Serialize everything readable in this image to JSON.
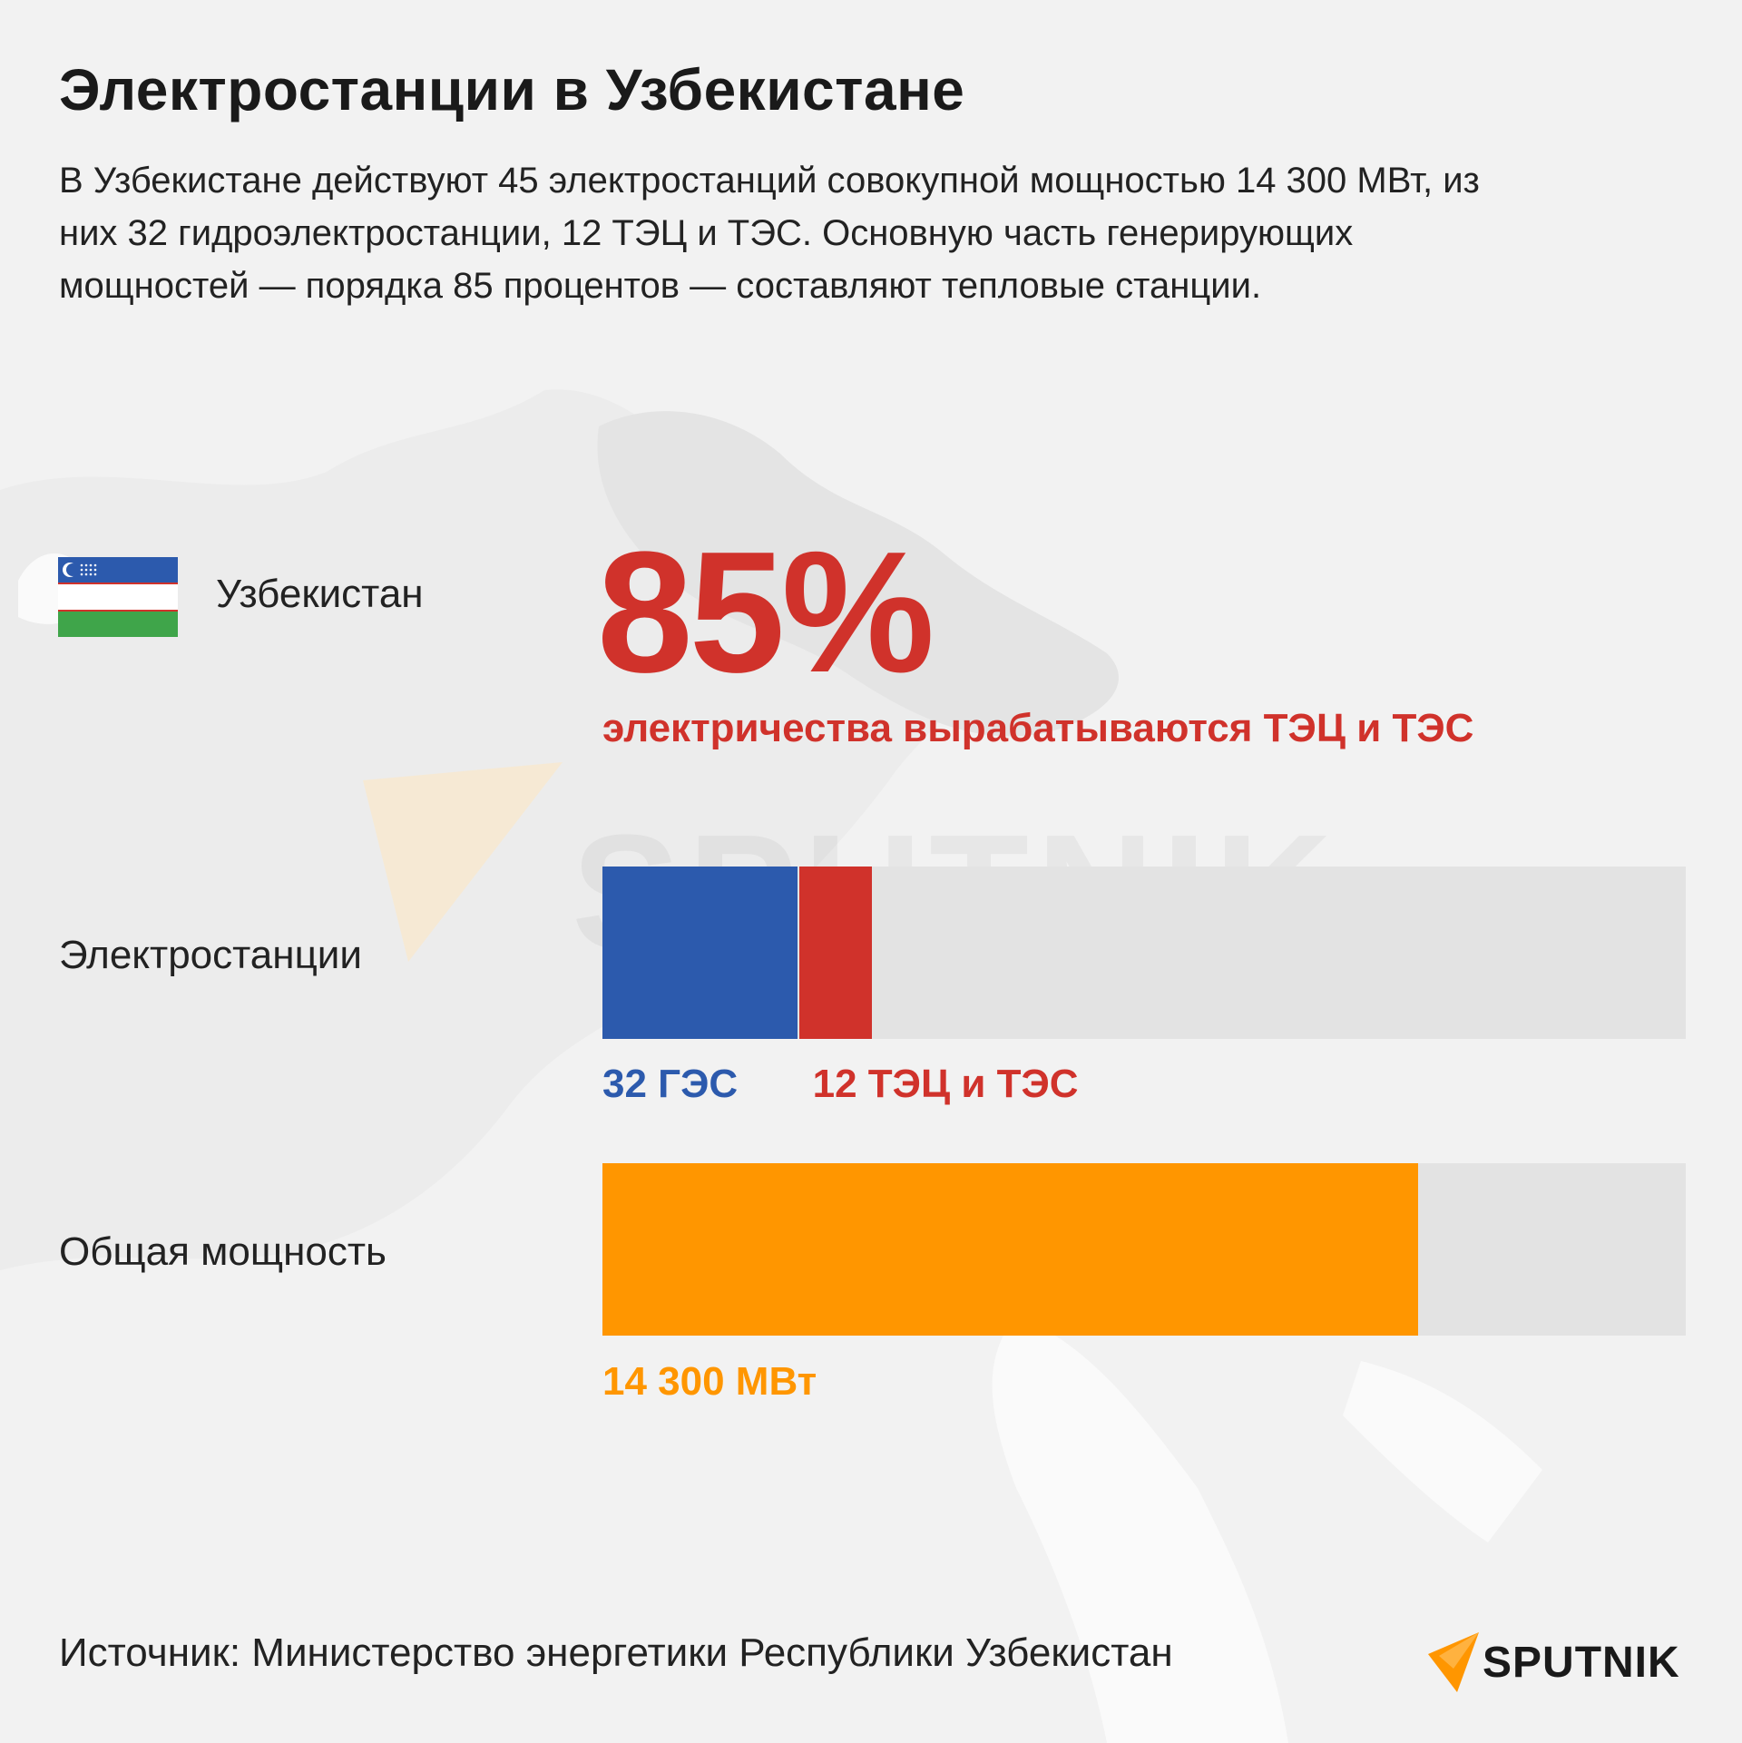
{
  "title": "Электростанции в Узбекистане",
  "lead": "В Узбекистане действуют 45 электростанций совокупной мощностью 14 300 МВт, из них 32 гидроэлектростанции, 12 ТЭЦ и ТЭС. Основную часть генерирующих мощностей — порядка 85 процентов — составляют тепловые станции.",
  "country": "Узбекистан",
  "highlight": {
    "value": "85%",
    "caption": "электричества вырабатываются ТЭЦ и ТЭС"
  },
  "source": "Источник: Министерство энергетики Республики Узбекистан",
  "brand": "SPUTNIK",
  "watermark": "SPUTNIK",
  "colors": {
    "hydro": "#2c5aad",
    "thermal": "#d0322b",
    "capacity": "#ff9600",
    "track": "#e3e3e3"
  },
  "chart_data": [
    {
      "type": "bar",
      "orientation": "horizontal",
      "stacked": true,
      "category": "Электростанции",
      "series": [
        {
          "name": "32 ГЭС",
          "value": 32
        },
        {
          "name": "12 ТЭЦ и ТЭС",
          "value": 12
        }
      ],
      "max": 178
    },
    {
      "type": "bar",
      "orientation": "horizontal",
      "category": "Общая мощность",
      "series": [
        {
          "name": "14 300 МВт",
          "value": 14300
        }
      ],
      "max": 18990
    }
  ]
}
